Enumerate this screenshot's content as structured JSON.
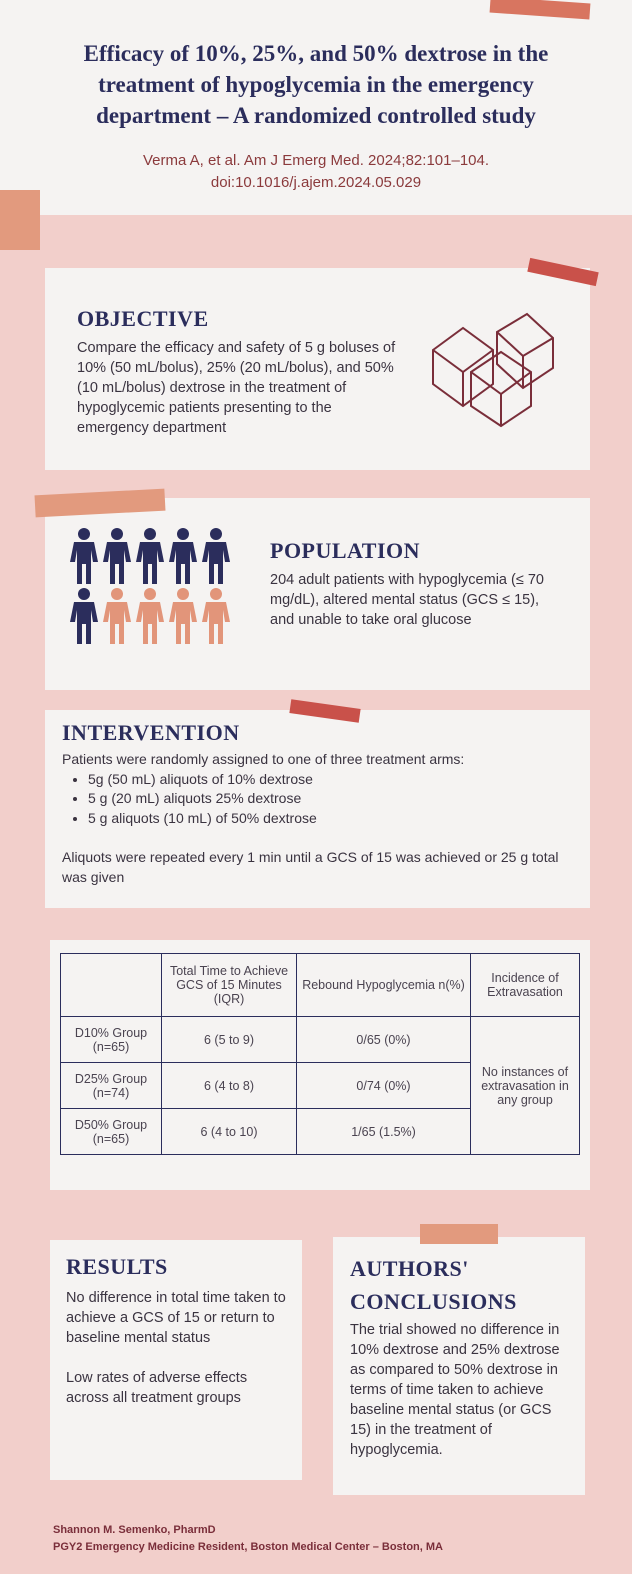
{
  "header": {
    "title": "Efficacy of 10%, 25%, and 50% dextrose in the treatment of hypoglycemia in the emergency department – A randomized controlled study",
    "citation": [
      "Verma A, et al. Am J Emerg Med. 2024;82:101–104.",
      "doi:10.1016/j.ajem.2024.05.029"
    ]
  },
  "objective": {
    "heading": "OBJECTIVE",
    "text": "Compare the efficacy and safety of 5 g boluses of 10% (50 mL/bolus), 25% (20 mL/bolus), and 50% (10 mL/bolus) dextrose in the treatment of hypoglycemic patients presenting to the emergency department"
  },
  "population": {
    "heading": "POPULATION",
    "text": "204 adult patients with hypoglycemia (≤ 70 mg/dL), altered mental status (GCS ≤ 15), and unable to take oral glucose"
  },
  "intervention": {
    "heading": "INTERVENTION",
    "intro": "Patients were randomly assigned to one of three treatment arms:",
    "bullets": [
      "5g (50 mL) aliquots of 10% dextrose",
      "5 g (20 mL) aliquots 25% dextrose",
      "5 g aliquots (10 mL) of 50% dextrose"
    ],
    "note": "Aliquots were repeated every 1 min until a GCS of 15 was achieved or 25 g total was given"
  },
  "table": {
    "headers": [
      "Total Time to Achieve GCS of 15 Minutes (IQR)",
      "Rebound Hypoglycemia n(%)",
      "Incidence of Extravasation"
    ],
    "rows": [
      [
        "D10% Group (n=65)",
        "6 (5 to 9)",
        "0/65 (0%)"
      ],
      [
        "D25% Group (n=74)",
        "6 (4 to 8)",
        "0/74 (0%)"
      ],
      [
        "D50% Group (n=65)",
        "6 (4 to 10)",
        "1/65 (1.5%)"
      ]
    ],
    "extravasation": "No instances of extravasation in any group"
  },
  "results": {
    "heading": "RESULTS",
    "paragraphs": [
      "No difference in total time taken to achieve a GCS of 15 or return to baseline mental status",
      "Low rates of adverse effects across all treatment groups"
    ]
  },
  "conclusions": {
    "heading": "AUTHORS' CONCLUSIONS",
    "text": "The trial showed no difference in 10% dextrose and 25% dextrose as compared to 50% dextrose in terms of time taken to achieve baseline mental status (or GCS 15) in the treatment of hypoglycemia."
  },
  "footer": [
    "Shannon M. Semenko, PharmD",
    "PGY2 Emergency Medicine Resident, Boston Medical Center – Boston, MA"
  ]
}
